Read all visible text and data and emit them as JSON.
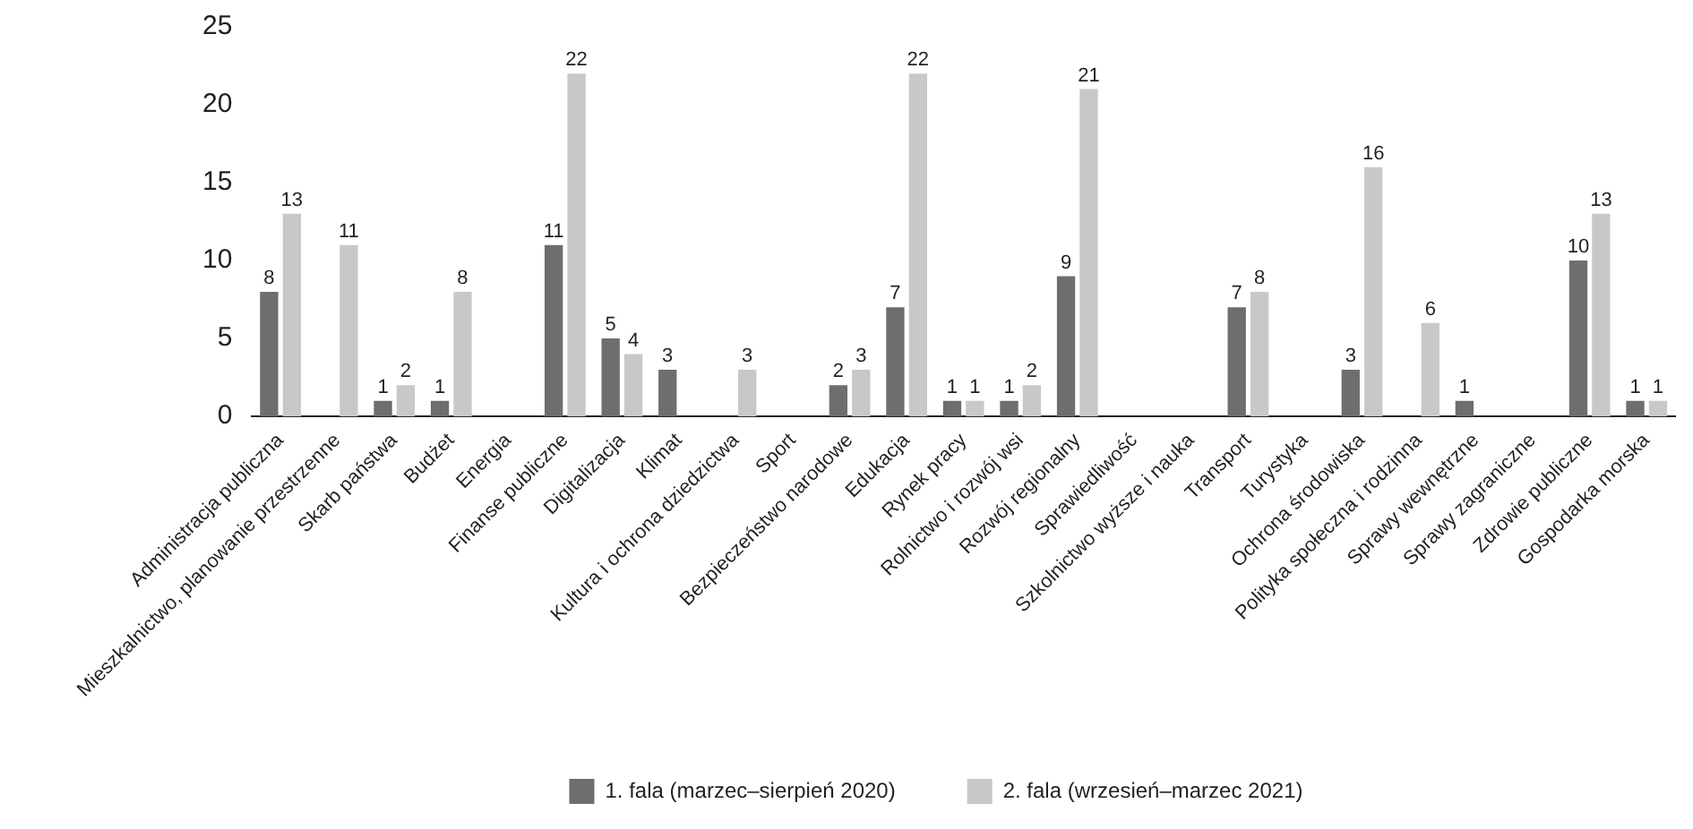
{
  "chart_data": {
    "type": "bar",
    "categories": [
      "Administracja publiczna",
      "Mieszkalnictwo, planowanie przestrzenne",
      "Skarb państwa",
      "Budżet",
      "Energia",
      "Finanse publiczne",
      "Digitalizacja",
      "Klimat",
      "Kultura i ochrona dziedzictwa",
      "Sport",
      "Bezpieczeństwo narodowe",
      "Edukacja",
      "Rynek pracy",
      "Rolnictwo i rozwój wsi",
      "Rozwój regionalny",
      "Sprawiedliwość",
      "Szkolnictwo wyższe i nauka",
      "Transport",
      "Turystyka",
      "Ochrona środowiska",
      "Polityka społeczna i rodzinna",
      "Sprawy wewnętrzne",
      "Sprawy zagraniczne",
      "Zdrowie publiczne",
      "Gospodarka morska"
    ],
    "series": [
      {
        "name": "1. fala (marzec–sierpień 2020)",
        "color": "#6d6e70",
        "values": [
          8,
          null,
          1,
          1,
          null,
          11,
          5,
          3,
          null,
          null,
          2,
          7,
          1,
          1,
          9,
          null,
          null,
          7,
          null,
          3,
          null,
          1,
          null,
          10,
          1
        ]
      },
      {
        "name": "2. fala (wrzesień–marzec 2021)",
        "color": "#c7c8ca",
        "values": [
          13,
          11,
          2,
          8,
          null,
          22,
          4,
          null,
          3,
          null,
          3,
          22,
          1,
          2,
          21,
          null,
          null,
          8,
          null,
          16,
          6,
          null,
          null,
          13,
          1
        ]
      }
    ],
    "ylim": [
      0,
      25
    ],
    "yticks": [
      0,
      5,
      10,
      15,
      20,
      25
    ],
    "grid": false,
    "legend": "bottom",
    "data_labels": true
  }
}
